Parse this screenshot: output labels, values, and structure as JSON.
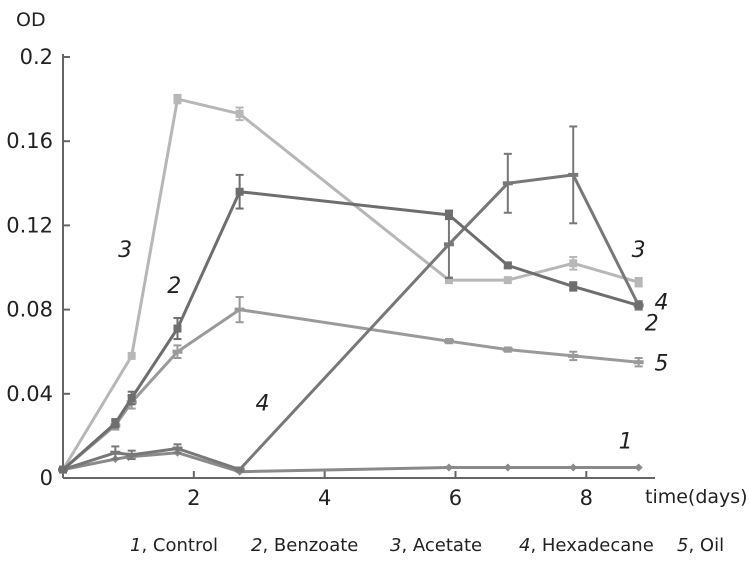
{
  "chart_data": {
    "type": "line",
    "ylabel": "OD",
    "xlabel": "time(days)",
    "xlim": [
      0,
      9.05
    ],
    "ylim": [
      0,
      0.2
    ],
    "x_ticks": [
      {
        "value": 2,
        "label": "2"
      },
      {
        "value": 4,
        "label": "4"
      },
      {
        "value": 6,
        "label": "6"
      },
      {
        "value": 8,
        "label": "8"
      }
    ],
    "y_ticks": [
      {
        "value": 0,
        "label": "0"
      },
      {
        "value": 0.04,
        "label": "0.04"
      },
      {
        "value": 0.08,
        "label": "0.08"
      },
      {
        "value": 0.12,
        "label": "0.12"
      },
      {
        "value": 0.16,
        "label": "0.16"
      },
      {
        "value": 0.2,
        "label": "0.2"
      }
    ],
    "grid": false,
    "legend_position": "bottom",
    "series": [
      {
        "id": "1",
        "name": "Control",
        "color": "#8a8a8a",
        "marker": "diamond",
        "label_at": [
          8.6,
          0.014
        ],
        "points": [
          [
            0,
            0.004
          ],
          [
            0.8,
            0.009
          ],
          [
            1.0,
            0.01
          ],
          [
            1.75,
            0.012
          ],
          [
            2.7,
            0.003
          ],
          [
            5.9,
            0.005
          ],
          [
            6.8,
            0.005
          ],
          [
            7.8,
            0.005
          ],
          [
            8.8,
            0.005
          ]
        ]
      },
      {
        "id": "2",
        "name": "Benzoate",
        "color": "#9a9a9a",
        "marker": "dash",
        "label_at": [
          9.0,
          0.07
        ],
        "points": [
          [
            0,
            0.004
          ],
          [
            0.8,
            0.025
          ],
          [
            1.05,
            0.036
          ],
          [
            1.75,
            0.06
          ],
          [
            2.7,
            0.08
          ],
          [
            5.9,
            0.065
          ],
          [
            6.8,
            0.061
          ],
          [
            7.8,
            0.058
          ],
          [
            8.8,
            0.055
          ]
        ],
        "errors": [
          0,
          0.002,
          0.003,
          0.003,
          0.006,
          0.001,
          0.001,
          0.002,
          0.002
        ]
      },
      {
        "id": "3",
        "name": "Acetate",
        "color": "#b7b7b7",
        "marker": "square",
        "label_at": [
          8.8,
          0.105
        ],
        "points": [
          [
            0,
            0.004
          ],
          [
            1.05,
            0.058
          ],
          [
            1.75,
            0.18
          ],
          [
            2.7,
            0.173
          ],
          [
            5.9,
            0.094
          ],
          [
            6.8,
            0.094
          ],
          [
            7.8,
            0.102
          ],
          [
            8.8,
            0.093
          ]
        ],
        "errors": [
          0,
          0,
          0.002,
          0.003,
          0,
          0,
          0.003,
          0.002
        ]
      },
      {
        "id": "4",
        "name": "Hexadecane",
        "color": "#787878",
        "marker": "dash",
        "label_at": [
          9.15,
          0.08
        ],
        "points": [
          [
            0,
            0.004
          ],
          [
            0.8,
            0.012
          ],
          [
            1.05,
            0.011
          ],
          [
            1.75,
            0.014
          ],
          [
            2.7,
            0.004
          ],
          [
            5.9,
            0.111
          ],
          [
            6.8,
            0.14
          ],
          [
            7.8,
            0.144
          ],
          [
            8.8,
            0.082
          ]
        ],
        "errors": [
          0,
          0.003,
          0.002,
          0.002,
          0.001,
          0.016,
          0.014,
          0.023,
          0.002
        ]
      },
      {
        "id": "5",
        "name": "Oil",
        "color": "#6e6e6e",
        "marker": "square",
        "label_at": [
          9.15,
          0.051
        ],
        "points": [
          [
            0,
            0.004
          ],
          [
            0.8,
            0.026
          ],
          [
            1.05,
            0.038
          ],
          [
            1.75,
            0.071
          ],
          [
            2.7,
            0.136
          ],
          [
            5.9,
            0.125
          ],
          [
            6.8,
            0.101
          ],
          [
            7.8,
            0.091
          ],
          [
            8.8,
            0.082
          ]
        ],
        "errors": [
          0,
          0.002,
          0.003,
          0.005,
          0.008,
          0.002,
          0.001,
          0.002,
          0.001
        ]
      }
    ],
    "annotations": [
      {
        "text": "3",
        "x": 0.95,
        "y": 0.105
      },
      {
        "text": "2",
        "x": 1.7,
        "y": 0.088
      },
      {
        "text": "4",
        "x": 3.05,
        "y": 0.032
      }
    ],
    "legend": [
      {
        "num": "1",
        "text": ", Control"
      },
      {
        "num": "2",
        "text": ", Benzoate"
      },
      {
        "num": "3",
        "text": ", Acetate"
      },
      {
        "num": "4",
        "text": ", Hexadecane"
      },
      {
        "num": "5",
        "text": ", Oil"
      }
    ]
  }
}
